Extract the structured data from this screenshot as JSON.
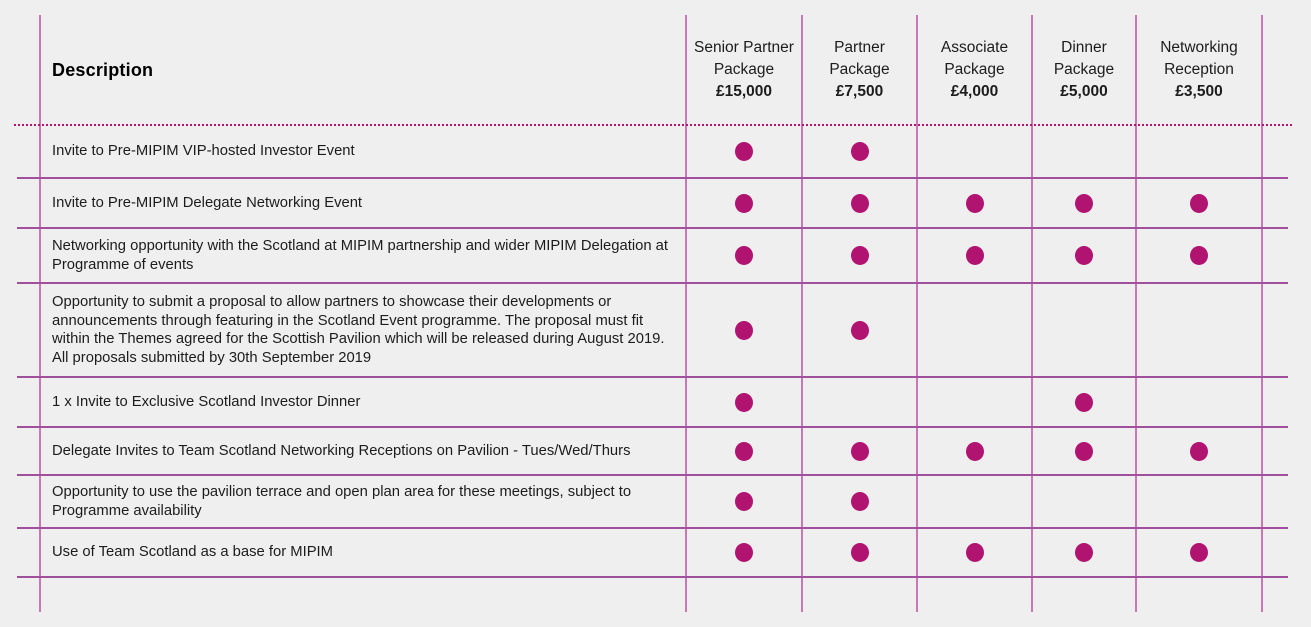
{
  "table": {
    "description_header": "Description",
    "columns": [
      {
        "name": "Senior Partner Package",
        "price": "£15,000"
      },
      {
        "name": "Partner Package",
        "price": "£7,500"
      },
      {
        "name": "Associate Package",
        "price": "£4,000"
      },
      {
        "name": "Dinner Package",
        "price": "£5,000"
      },
      {
        "name": "Networking Reception",
        "price": "£3,500"
      }
    ],
    "rows": [
      {
        "description": "Invite to Pre-MIPIM VIP-hosted Investor Event",
        "included": [
          true,
          true,
          false,
          false,
          false
        ]
      },
      {
        "description": "Invite to Pre-MIPIM Delegate Networking Event",
        "included": [
          true,
          true,
          true,
          true,
          true
        ]
      },
      {
        "description": "Networking opportunity with the Scotland at MIPIM partnership and wider MIPIM Delegation at Programme of events",
        "included": [
          true,
          true,
          true,
          true,
          true
        ]
      },
      {
        "description": "Opportunity to submit a proposal to allow partners to showcase their developments or announcements through featuring in the Scotland Event programme.  The proposal must fit within the Themes agreed for the Scottish Pavilion which will be released during August 2019. All proposals submitted by 30th September 2019",
        "included": [
          true,
          true,
          false,
          false,
          false
        ]
      },
      {
        "description": "1 x Invite to Exclusive Scotland Investor Dinner",
        "included": [
          true,
          false,
          false,
          true,
          false
        ]
      },
      {
        "description": "Delegate Invites to Team Scotland Networking Receptions on Pavilion - Tues/Wed/Thurs",
        "included": [
          true,
          true,
          true,
          true,
          true
        ]
      },
      {
        "description": "Opportunity to use the pavilion terrace and open plan area for these meetings, subject to Programme availability",
        "included": [
          true,
          true,
          false,
          false,
          false
        ]
      },
      {
        "description": "Use of Team Scotland as a base for MIPIM",
        "included": [
          true,
          true,
          true,
          true,
          true
        ]
      }
    ]
  },
  "colors": {
    "dot": "#b01370",
    "grid_vertical": "#c878b4",
    "grid_horizontal": "#a0509c",
    "dotted_separator": "#b3156f",
    "background": "#f0eff0"
  }
}
